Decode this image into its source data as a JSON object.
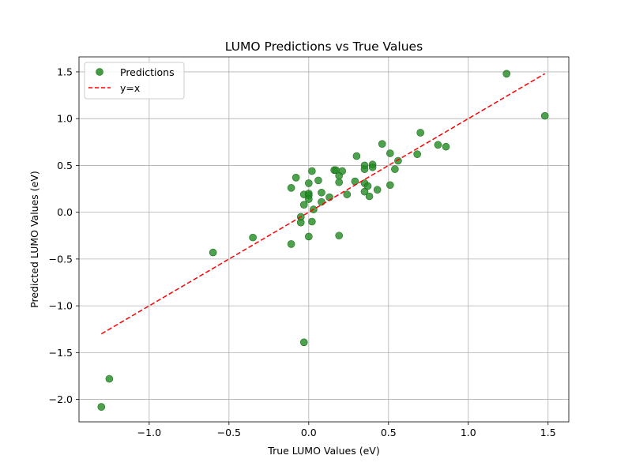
{
  "chart_data": {
    "type": "scatter",
    "title": "LUMO Predictions vs True Values",
    "xlabel": "True LUMO Values (eV)",
    "ylabel": "Predicted LUMO Values (eV)",
    "xlim": [
      -1.44,
      1.63
    ],
    "ylim": [
      -2.24,
      1.66
    ],
    "xticks": [
      -1.0,
      -0.5,
      0.0,
      0.5,
      1.0,
      1.5
    ],
    "xtick_labels": [
      "−1.0",
      "−0.5",
      "0.0",
      "0.5",
      "1.0",
      "1.5"
    ],
    "yticks": [
      -2.0,
      -1.5,
      -1.0,
      -0.5,
      0.0,
      0.5,
      1.0,
      1.5
    ],
    "ytick_labels": [
      "−2.0",
      "−1.5",
      "−1.0",
      "−0.5",
      "0.0",
      "0.5",
      "1.0",
      "1.5"
    ],
    "grid": true,
    "legend": {
      "placement": "top-left",
      "entries": [
        {
          "label": "Predictions",
          "marker": "circle",
          "color": "#228B22"
        },
        {
          "label": "y=x",
          "marker": "dashed-line",
          "color": "#ff0000"
        }
      ]
    },
    "series": [
      {
        "name": "Predictions",
        "color": "#228B22",
        "points": [
          [
            -1.3,
            -2.08
          ],
          [
            -1.25,
            -1.78
          ],
          [
            -0.6,
            -0.43
          ],
          [
            -0.35,
            -0.27
          ],
          [
            -0.11,
            -0.34
          ],
          [
            -0.11,
            0.26
          ],
          [
            -0.08,
            0.37
          ],
          [
            -0.05,
            -0.11
          ],
          [
            -0.05,
            -0.05
          ],
          [
            -0.03,
            0.19
          ],
          [
            -0.03,
            0.08
          ],
          [
            -0.03,
            -1.39
          ],
          [
            0.0,
            -0.26
          ],
          [
            0.0,
            0.31
          ],
          [
            0.0,
            0.2
          ],
          [
            0.0,
            0.18
          ],
          [
            0.0,
            0.14
          ],
          [
            0.02,
            0.44
          ],
          [
            0.02,
            -0.1
          ],
          [
            0.03,
            0.03
          ],
          [
            0.06,
            0.34
          ],
          [
            0.08,
            0.21
          ],
          [
            0.08,
            0.11
          ],
          [
            0.13,
            0.16
          ],
          [
            0.16,
            0.45
          ],
          [
            0.17,
            0.45
          ],
          [
            0.19,
            0.39
          ],
          [
            0.19,
            0.32
          ],
          [
            0.19,
            -0.25
          ],
          [
            0.21,
            0.44
          ],
          [
            0.24,
            0.19
          ],
          [
            0.29,
            0.33
          ],
          [
            0.3,
            0.6
          ],
          [
            0.35,
            0.5
          ],
          [
            0.35,
            0.46
          ],
          [
            0.35,
            0.31
          ],
          [
            0.35,
            0.22
          ],
          [
            0.37,
            0.28
          ],
          [
            0.38,
            0.17
          ],
          [
            0.4,
            0.51
          ],
          [
            0.4,
            0.48
          ],
          [
            0.43,
            0.24
          ],
          [
            0.46,
            0.73
          ],
          [
            0.51,
            0.63
          ],
          [
            0.51,
            0.29
          ],
          [
            0.54,
            0.46
          ],
          [
            0.56,
            0.55
          ],
          [
            0.68,
            0.62
          ],
          [
            0.7,
            0.85
          ],
          [
            0.81,
            0.72
          ],
          [
            0.86,
            0.7
          ],
          [
            1.24,
            1.48
          ],
          [
            1.48,
            1.03
          ]
        ]
      },
      {
        "name": "y=x",
        "color": "#ff0000",
        "line": [
          [
            -1.3,
            -1.3
          ],
          [
            1.48,
            1.48
          ]
        ]
      }
    ]
  }
}
